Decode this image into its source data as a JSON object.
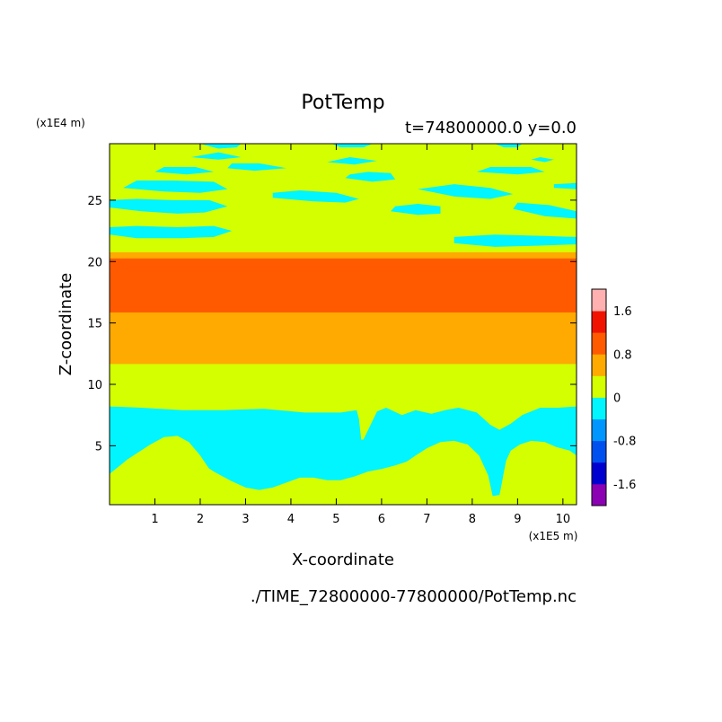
{
  "chart_data": {
    "type": "heatmap",
    "title": "PotTemp",
    "subtitle": "t=74800000.0 y=0.0",
    "xlabel": "X-coordinate",
    "ylabel": "Z-coordinate",
    "x_units": "(x1E5 m)",
    "y_units": "(x1E4 m)",
    "footer": "./TIME_72800000-77800000/PotTemp.nc",
    "xlim": [
      0,
      10.3
    ],
    "ylim": [
      0.2,
      29.6
    ],
    "x_ticks": [
      1,
      2,
      3,
      4,
      5,
      6,
      7,
      8,
      9,
      10
    ],
    "y_ticks": [
      5,
      10,
      15,
      20,
      25
    ],
    "grid": false,
    "legend": "colorbar-right",
    "colorbar": {
      "levels": [
        -2.0,
        -1.6,
        -1.2,
        -0.8,
        -0.4,
        0,
        0.4,
        0.8,
        1.2,
        1.6,
        2.0
      ],
      "colors": [
        "#8c00b4",
        "#0000d0",
        "#0050f0",
        "#0096ff",
        "#00f5ff",
        "#d4ff00",
        "#ffaa00",
        "#ff5a00",
        "#f01400",
        "#ffb0b0"
      ],
      "tick_labels": [
        "1.6",
        "0.8",
        "0",
        "-0.8",
        "-1.6"
      ],
      "tick_values": [
        1.6,
        0.8,
        0,
        -0.8,
        -1.6
      ]
    },
    "bands": [
      {
        "z_min": 0.2,
        "z_max": 11.7,
        "value_range": "0 to 0.4",
        "color": "#d4ff00"
      },
      {
        "z_min": 11.7,
        "z_max": 15.9,
        "value_range": "0.4 to 0.8",
        "color": "#ffaa00"
      },
      {
        "z_min": 15.9,
        "z_max": 20.3,
        "value_range": "0.8 to 1.2",
        "color": "#ff5a00"
      },
      {
        "z_min": 20.3,
        "z_max": 20.8,
        "value_range": "0.4 to 0.8",
        "color": "#ffaa00"
      },
      {
        "z_min": 20.8,
        "z_max": 29.6,
        "value_range": "0 to 0.4",
        "color": "#d4ff00"
      }
    ],
    "negative_regions": {
      "value_range": "-0.4 to 0",
      "color": "#00f5ff",
      "lower_lobe": [
        [
          0,
          2.7
        ],
        [
          0.4,
          3.9
        ],
        [
          0.9,
          5.1
        ],
        [
          1.2,
          5.7
        ],
        [
          1.5,
          5.8
        ],
        [
          1.75,
          5.3
        ],
        [
          2.0,
          4.2
        ],
        [
          2.2,
          3.1
        ],
        [
          2.35,
          1.9
        ],
        [
          2.45,
          0.8
        ],
        [
          2.5,
          0.2
        ],
        [
          0,
          0.2
        ]
      ],
      "lower_body": [
        [
          0,
          8.2
        ],
        [
          0.7,
          8.1
        ],
        [
          1.6,
          7.9
        ],
        [
          2.5,
          7.9
        ],
        [
          3.4,
          8.0
        ],
        [
          4.3,
          7.7
        ],
        [
          5.1,
          7.7
        ],
        [
          5.45,
          7.9
        ],
        [
          5.5,
          7.2
        ],
        [
          5.55,
          5.5
        ],
        [
          5.6,
          5.5
        ],
        [
          5.9,
          7.8
        ],
        [
          6.1,
          8.1
        ],
        [
          6.45,
          7.5
        ],
        [
          6.75,
          7.9
        ],
        [
          7.1,
          7.6
        ],
        [
          7.4,
          7.9
        ],
        [
          7.7,
          8.1
        ],
        [
          8.1,
          7.7
        ],
        [
          8.4,
          6.7
        ],
        [
          8.6,
          6.3
        ],
        [
          8.85,
          6.8
        ],
        [
          9.1,
          7.5
        ],
        [
          9.5,
          8.1
        ],
        [
          9.9,
          8.1
        ],
        [
          10.3,
          8.2
        ],
        [
          10.3,
          4.2
        ],
        [
          10.15,
          4.6
        ],
        [
          9.85,
          4.9
        ],
        [
          9.6,
          5.3
        ],
        [
          9.3,
          5.4
        ],
        [
          9.05,
          5.1
        ],
        [
          8.85,
          4.6
        ],
        [
          8.75,
          3.8
        ],
        [
          8.7,
          2.9
        ],
        [
          8.65,
          1.9
        ],
        [
          8.6,
          1.0
        ],
        [
          8.45,
          0.9
        ],
        [
          8.35,
          2.6
        ],
        [
          8.15,
          4.2
        ],
        [
          7.9,
          5.1
        ],
        [
          7.6,
          5.4
        ],
        [
          7.3,
          5.3
        ],
        [
          7.0,
          4.8
        ],
        [
          6.75,
          4.2
        ],
        [
          6.55,
          3.7
        ],
        [
          6.3,
          3.4
        ],
        [
          6.0,
          3.1
        ],
        [
          5.7,
          2.9
        ],
        [
          5.4,
          2.5
        ],
        [
          5.1,
          2.2
        ],
        [
          4.8,
          2.2
        ],
        [
          4.5,
          2.4
        ],
        [
          4.2,
          2.4
        ],
        [
          3.9,
          2.0
        ],
        [
          3.6,
          1.6
        ],
        [
          3.3,
          1.4
        ],
        [
          3.0,
          1.6
        ],
        [
          2.7,
          2.1
        ],
        [
          2.5,
          2.5
        ],
        [
          2.3,
          2.9
        ],
        [
          2.05,
          3.5
        ],
        [
          1.8,
          4.0
        ],
        [
          1.6,
          4.4
        ],
        [
          1.4,
          4.6
        ],
        [
          1.15,
          4.4
        ],
        [
          0.95,
          3.9
        ],
        [
          0.75,
          3.4
        ],
        [
          0.45,
          2.8
        ],
        [
          0.2,
          2.4
        ],
        [
          0,
          2.2
        ]
      ],
      "streaks": [
        [
          [
            0,
            22.2
          ],
          [
            0.6,
            21.9
          ],
          [
            1.6,
            21.9
          ],
          [
            2.3,
            22.0
          ],
          [
            2.7,
            22.5
          ],
          [
            2.3,
            22.9
          ],
          [
            1.5,
            22.8
          ],
          [
            0.6,
            22.9
          ],
          [
            0,
            22.8
          ]
        ],
        [
          [
            0,
            24.4
          ],
          [
            0.7,
            24.1
          ],
          [
            1.5,
            23.9
          ],
          [
            2.1,
            24.0
          ],
          [
            2.6,
            24.5
          ],
          [
            2.2,
            25.0
          ],
          [
            1.4,
            25.0
          ],
          [
            0.6,
            25.1
          ],
          [
            0,
            25.0
          ]
        ],
        [
          [
            0.3,
            26.0
          ],
          [
            1.2,
            25.7
          ],
          [
            2.0,
            25.6
          ],
          [
            2.6,
            25.9
          ],
          [
            2.3,
            26.5
          ],
          [
            1.4,
            26.6
          ],
          [
            0.6,
            26.6
          ]
        ],
        [
          [
            3.6,
            25.2
          ],
          [
            4.5,
            24.9
          ],
          [
            5.2,
            24.8
          ],
          [
            5.5,
            25.1
          ],
          [
            5.0,
            25.6
          ],
          [
            4.2,
            25.8
          ],
          [
            3.6,
            25.6
          ]
        ],
        [
          [
            5.2,
            26.8
          ],
          [
            5.8,
            26.5
          ],
          [
            6.3,
            26.7
          ],
          [
            6.2,
            27.2
          ],
          [
            5.7,
            27.3
          ],
          [
            5.3,
            27.1
          ]
        ],
        [
          [
            6.2,
            24.1
          ],
          [
            6.8,
            23.8
          ],
          [
            7.3,
            23.9
          ],
          [
            7.3,
            24.5
          ],
          [
            6.8,
            24.7
          ],
          [
            6.3,
            24.5
          ]
        ],
        [
          [
            6.8,
            25.9
          ],
          [
            7.6,
            25.3
          ],
          [
            8.4,
            25.1
          ],
          [
            8.9,
            25.5
          ],
          [
            8.4,
            26.0
          ],
          [
            7.6,
            26.3
          ]
        ],
        [
          [
            7.6,
            21.5
          ],
          [
            8.5,
            21.2
          ],
          [
            9.5,
            21.3
          ],
          [
            10.3,
            21.4
          ],
          [
            10.3,
            22.0
          ],
          [
            9.5,
            22.1
          ],
          [
            8.5,
            22.2
          ],
          [
            7.6,
            22.0
          ]
        ],
        [
          [
            8.9,
            24.3
          ],
          [
            9.6,
            23.7
          ],
          [
            10.3,
            23.5
          ],
          [
            10.3,
            24.1
          ],
          [
            9.7,
            24.6
          ],
          [
            9.0,
            24.8
          ]
        ],
        [
          [
            9.8,
            26.0
          ],
          [
            10.3,
            25.9
          ],
          [
            10.3,
            26.4
          ],
          [
            9.8,
            26.3
          ]
        ],
        [
          [
            8.1,
            27.3
          ],
          [
            9.0,
            27.1
          ],
          [
            9.6,
            27.3
          ],
          [
            9.3,
            27.7
          ],
          [
            8.4,
            27.7
          ]
        ],
        [
          [
            1.0,
            27.3
          ],
          [
            1.7,
            27.1
          ],
          [
            2.3,
            27.3
          ],
          [
            1.9,
            27.7
          ],
          [
            1.2,
            27.7
          ]
        ],
        [
          [
            2.6,
            27.6
          ],
          [
            3.2,
            27.4
          ],
          [
            3.9,
            27.6
          ],
          [
            3.3,
            28.0
          ],
          [
            2.7,
            28.0
          ]
        ],
        [
          [
            1.8,
            28.5
          ],
          [
            2.4,
            28.3
          ],
          [
            2.9,
            28.5
          ],
          [
            2.4,
            28.9
          ]
        ],
        [
          [
            4.8,
            28.1
          ],
          [
            5.4,
            27.9
          ],
          [
            5.9,
            28.2
          ],
          [
            5.3,
            28.5
          ]
        ],
        [
          [
            2.0,
            29.6
          ],
          [
            2.4,
            29.2
          ],
          [
            2.8,
            29.3
          ],
          [
            2.9,
            29.6
          ]
        ],
        [
          [
            4.9,
            29.6
          ],
          [
            5.1,
            29.3
          ],
          [
            5.6,
            29.3
          ],
          [
            5.8,
            29.6
          ]
        ],
        [
          [
            8.5,
            29.6
          ],
          [
            8.7,
            29.3
          ],
          [
            9.0,
            29.3
          ],
          [
            9.1,
            29.6
          ]
        ],
        [
          [
            9.3,
            28.3
          ],
          [
            9.6,
            28.1
          ],
          [
            9.8,
            28.3
          ],
          [
            9.5,
            28.5
          ]
        ]
      ]
    }
  }
}
